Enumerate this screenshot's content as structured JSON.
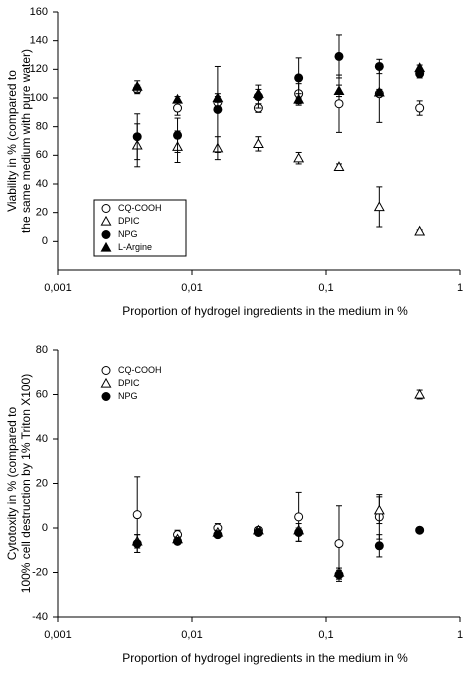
{
  "chart_data": [
    {
      "type": "scatter",
      "ylabel": [
        "Viability in % (compared to",
        "the same medium with pure water)"
      ],
      "xlabel": "Proportion of hydrogel ingredients in the medium in %",
      "x": [
        0.0039,
        0.0078,
        0.0156,
        0.0313,
        0.0625,
        0.125,
        0.25,
        0.5
      ],
      "xlog": true,
      "xlim": [
        0.001,
        1
      ],
      "xticks": [
        {
          "value": 0.001,
          "label": "0,001"
        },
        {
          "value": 0.01,
          "label": "0,01"
        },
        {
          "value": 0.1,
          "label": "0,1"
        },
        1
      ],
      "ylim": [
        -20,
        160
      ],
      "yticks": [
        0,
        20,
        40,
        60,
        80,
        100,
        120,
        140,
        160
      ],
      "legend": "lower left",
      "legend_box": true,
      "series": [
        {
          "name": "CQ-COOH",
          "marker": "open-circle",
          "color": "#000000",
          "values": [
            106,
            93,
            97,
            93,
            103,
            96,
            103,
            93
          ],
          "errors": [
            3,
            5,
            4,
            3,
            7,
            20,
            20,
            5
          ]
        },
        {
          "name": "DPIC",
          "marker": "open-triangle",
          "color": "#000000",
          "values": [
            67,
            66,
            65,
            68,
            58,
            52,
            24,
            7
          ],
          "errors": [
            15,
            11,
            8,
            5,
            4,
            2,
            14,
            1
          ]
        },
        {
          "name": "NPG",
          "marker": "filled-circle",
          "color": "#000000",
          "values": [
            73,
            74,
            92,
            101,
            114,
            129,
            122,
            117
          ],
          "errors": [
            16,
            12,
            30,
            8,
            14,
            15,
            5,
            3
          ]
        },
        {
          "name": "L-Argine",
          "marker": "filled-triangle",
          "color": "#000000",
          "values": [
            108,
            99,
            100,
            103,
            99,
            105,
            104,
            121
          ],
          "errors": [
            4,
            2,
            3,
            3,
            4,
            4,
            2,
            2
          ]
        }
      ]
    },
    {
      "type": "scatter",
      "ylabel": [
        "Cytotoxity in % (compared to",
        "100% cell destruction by 1% Triton X100)"
      ],
      "xlabel": "Proportion of hydrogel ingredients in the medium in %",
      "x": [
        0.0039,
        0.0078,
        0.0156,
        0.0313,
        0.0625,
        0.125,
        0.25,
        0.5
      ],
      "xlog": true,
      "xlim": [
        0.001,
        1
      ],
      "xticks": [
        {
          "value": 0.001,
          "label": "0,001"
        },
        {
          "value": 0.01,
          "label": "0,01"
        },
        {
          "value": 0.1,
          "label": "0,1"
        },
        1
      ],
      "ylim": [
        -40,
        80
      ],
      "yticks": [
        -40,
        -20,
        0,
        20,
        40,
        60,
        80
      ],
      "legend": "upper left",
      "legend_box": false,
      "series": [
        {
          "name": "CQ-COOH",
          "marker": "open-circle",
          "color": "#000000",
          "values": [
            6,
            -3,
            0,
            -1,
            5,
            -7,
            5,
            null
          ],
          "errors": [
            17,
            2,
            2,
            1,
            11,
            17,
            10,
            null
          ]
        },
        {
          "name": "DPIC",
          "marker": "open-triangle",
          "color": "#000000",
          "values": [
            -6,
            -5,
            -2,
            -1,
            -1,
            -20,
            8,
            60
          ],
          "errors": [
            3,
            1,
            1,
            1,
            1,
            2,
            6,
            2
          ]
        },
        {
          "name": "NPG",
          "marker": "filled-circle",
          "color": "#000000",
          "values": [
            -7,
            -6,
            -3,
            -2,
            -2,
            -21,
            -8,
            -1
          ],
          "errors": [
            4,
            1,
            1,
            1,
            4,
            2,
            5,
            1
          ]
        }
      ]
    }
  ]
}
